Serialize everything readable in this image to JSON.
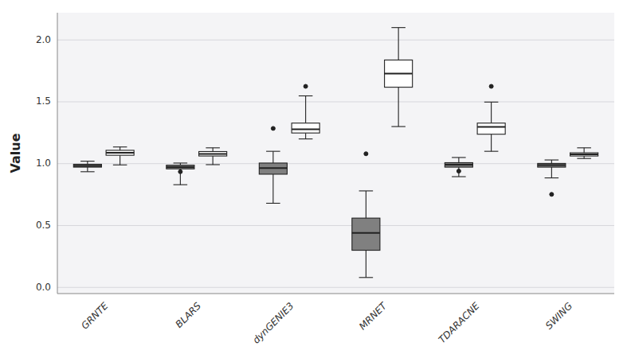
{
  "chart_data": {
    "type": "box",
    "y_label": "Value",
    "categories": [
      "GRNTE",
      "BLARS",
      "dynGENIE3",
      "MRNET",
      "TDARACNE",
      "SWING"
    ],
    "series": [
      {
        "color": "#808080",
        "values": [
          {
            "whislo": 0.935,
            "q1": 0.972,
            "med": 0.982,
            "q3": 0.995,
            "whishi": 1.02,
            "fliers": []
          },
          {
            "whislo": 0.83,
            "q1": 0.958,
            "med": 0.972,
            "q3": 0.988,
            "whishi": 1.005,
            "fliers": [
              0.935
            ]
          },
          {
            "whislo": 0.68,
            "q1": 0.915,
            "med": 0.965,
            "q3": 1.005,
            "whishi": 1.1,
            "fliers": [
              1.285
            ]
          },
          {
            "whislo": 0.08,
            "q1": 0.3,
            "med": 0.44,
            "q3": 0.56,
            "whishi": 0.78,
            "fliers": [
              1.08
            ]
          },
          {
            "whislo": 0.895,
            "q1": 0.972,
            "med": 0.992,
            "q3": 1.008,
            "whishi": 1.05,
            "fliers": [
              0.94
            ]
          },
          {
            "whislo": 0.885,
            "q1": 0.972,
            "med": 0.988,
            "q3": 1.002,
            "whishi": 1.03,
            "fliers": [
              0.752
            ]
          }
        ]
      },
      {
        "color": "#ffffff",
        "values": [
          {
            "whislo": 0.99,
            "q1": 1.068,
            "med": 1.088,
            "q3": 1.108,
            "whishi": 1.135,
            "fliers": []
          },
          {
            "whislo": 0.992,
            "q1": 1.062,
            "med": 1.078,
            "q3": 1.098,
            "whishi": 1.128,
            "fliers": []
          },
          {
            "whislo": 1.2,
            "q1": 1.248,
            "med": 1.278,
            "q3": 1.328,
            "whishi": 1.548,
            "fliers": [
              1.625
            ]
          },
          {
            "whislo": 1.3,
            "q1": 1.618,
            "med": 1.728,
            "q3": 1.838,
            "whishi": 2.1,
            "fliers": []
          },
          {
            "whislo": 1.1,
            "q1": 1.238,
            "med": 1.298,
            "q3": 1.328,
            "whishi": 1.498,
            "fliers": [
              1.625
            ]
          },
          {
            "whislo": 1.042,
            "q1": 1.062,
            "med": 1.075,
            "q3": 1.088,
            "whishi": 1.128,
            "fliers": []
          }
        ]
      }
    ],
    "ylim": [
      -0.05,
      2.22
    ],
    "yticks": [
      {
        "value": 0.0,
        "label": "0.0"
      },
      0.5,
      {
        "value": 1.0,
        "label": "1.0"
      },
      1.5,
      {
        "value": 2.0,
        "label": "2.0"
      }
    ],
    "grid": true
  }
}
